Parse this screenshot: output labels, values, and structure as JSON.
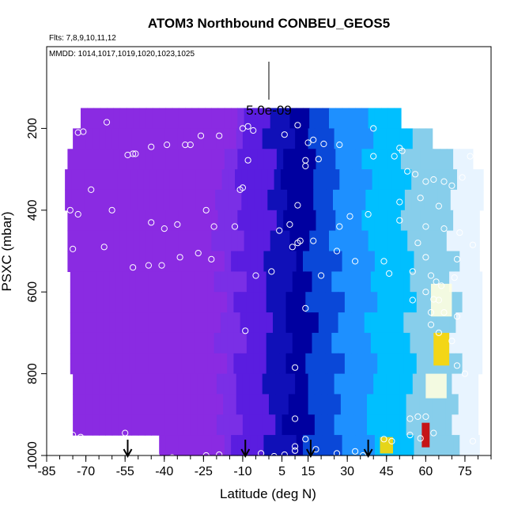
{
  "chart_data": {
    "type": "heatmap",
    "title": "ATOM3 Northbound CONBEU_GEOS5",
    "notes": [
      "Flts: 7,8,9,10,11,12",
      "MMDD: 1014,1017,1019,1020,1023,1025"
    ],
    "scale_label": "5.0e-09",
    "xlabel": "Latitude (deg N)",
    "ylabel": "PSXC (mbar)",
    "xlim": [
      -85,
      85
    ],
    "ylim": [
      1000,
      0
    ],
    "y_inverted": true,
    "x_ticks": [
      -85,
      -70,
      -55,
      -40,
      -25,
      -10,
      5,
      15,
      30,
      45,
      60,
      75
    ],
    "y_ticks": [
      200,
      400,
      600,
      800,
      1000
    ],
    "colorscale": [
      "#8a2be2",
      "#7a2fe6",
      "#5a1de0",
      "#1010b8",
      "#0000a0",
      "#0a48d8",
      "#1e90ff",
      "#00bfff",
      "#87ceeb",
      "#e8f4ff",
      "#ffffe0",
      "#ffd700",
      "#ff8c00",
      "#cc0000"
    ],
    "arrow_latitudes": [
      -54,
      -9,
      16,
      38
    ],
    "curtain": {
      "levels": [
        {
          "p": 175,
          "lat_min": -72,
          "lat_max": 50
        },
        {
          "p": 225,
          "lat_min": -75,
          "lat_max": 62
        },
        {
          "p": 275,
          "lat_min": -77,
          "lat_max": 78
        },
        {
          "p": 325,
          "lat_min": -78,
          "lat_max": 80
        },
        {
          "p": 375,
          "lat_min": -78,
          "lat_max": 80
        },
        {
          "p": 425,
          "lat_min": -77,
          "lat_max": 80
        },
        {
          "p": 475,
          "lat_min": -77,
          "lat_max": 80
        },
        {
          "p": 525,
          "lat_min": -77,
          "lat_max": 80
        },
        {
          "p": 575,
          "lat_min": -76,
          "lat_max": 80
        },
        {
          "p": 625,
          "lat_min": -76,
          "lat_max": 80
        },
        {
          "p": 675,
          "lat_min": -76,
          "lat_max": 80
        },
        {
          "p": 725,
          "lat_min": -76,
          "lat_max": 80
        },
        {
          "p": 775,
          "lat_min": -76,
          "lat_max": 80
        },
        {
          "p": 825,
          "lat_min": -75,
          "lat_max": 80
        },
        {
          "p": 875,
          "lat_min": -75,
          "lat_max": 80
        },
        {
          "p": 925,
          "lat_min": -75,
          "lat_max": 80
        },
        {
          "p": 975,
          "lat_min": -42,
          "lat_max": 80
        }
      ],
      "hotspots": [
        {
          "lat": 45,
          "p": 975,
          "lat_width": 5,
          "p_height": 40,
          "value": 0.75
        },
        {
          "lat": 60,
          "p": 950,
          "lat_width": 3,
          "p_height": 60,
          "value": 1.0
        },
        {
          "lat": 66,
          "p": 740,
          "lat_width": 6,
          "p_height": 80,
          "value": 0.8
        },
        {
          "lat": 66,
          "p": 620,
          "lat_width": 8,
          "p_height": 80,
          "value": 0.55
        },
        {
          "lat": 64,
          "p": 830,
          "lat_width": 8,
          "p_height": 60,
          "value": 0.55
        }
      ]
    },
    "observations": [
      {
        "lat": -77,
        "p": 215
      },
      {
        "lat": -73,
        "p": 210
      },
      {
        "lat": -71,
        "p": 208
      },
      {
        "lat": -62,
        "p": 185
      },
      {
        "lat": -54,
        "p": 265
      },
      {
        "lat": -52,
        "p": 262
      },
      {
        "lat": -51,
        "p": 262
      },
      {
        "lat": -45,
        "p": 245
      },
      {
        "lat": -39,
        "p": 240
      },
      {
        "lat": -32,
        "p": 240
      },
      {
        "lat": -30,
        "p": 240
      },
      {
        "lat": -26,
        "p": 218
      },
      {
        "lat": -19,
        "p": 218
      },
      {
        "lat": -10,
        "p": 200
      },
      {
        "lat": -8,
        "p": 195
      },
      {
        "lat": -6,
        "p": 205
      },
      {
        "lat": 6,
        "p": 215
      },
      {
        "lat": 11,
        "p": 192
      },
      {
        "lat": 15,
        "p": 235
      },
      {
        "lat": 17,
        "p": 228
      },
      {
        "lat": 21,
        "p": 238
      },
      {
        "lat": 27,
        "p": 240
      },
      {
        "lat": 40,
        "p": 200
      },
      {
        "lat": 50,
        "p": 248
      },
      {
        "lat": -84,
        "p": 330
      },
      {
        "lat": -76,
        "p": 400
      },
      {
        "lat": -73,
        "p": 410
      },
      {
        "lat": -68,
        "p": 350
      },
      {
        "lat": -60,
        "p": 400
      },
      {
        "lat": -45,
        "p": 430
      },
      {
        "lat": -40,
        "p": 445
      },
      {
        "lat": -35,
        "p": 435
      },
      {
        "lat": -24,
        "p": 400
      },
      {
        "lat": -21,
        "p": 440
      },
      {
        "lat": -13,
        "p": 440
      },
      {
        "lat": -11,
        "p": 350
      },
      {
        "lat": -10,
        "p": 345
      },
      {
        "lat": -8,
        "p": 278
      },
      {
        "lat": 4,
        "p": 450
      },
      {
        "lat": 8,
        "p": 435
      },
      {
        "lat": 11,
        "p": 388
      },
      {
        "lat": 14,
        "p": 278
      },
      {
        "lat": 14,
        "p": 292
      },
      {
        "lat": 19,
        "p": 275
      },
      {
        "lat": 27,
        "p": 440
      },
      {
        "lat": 31,
        "p": 415
      },
      {
        "lat": 38,
        "p": 410
      },
      {
        "lat": 40,
        "p": 268
      },
      {
        "lat": 48,
        "p": 268
      },
      {
        "lat": 51,
        "p": 255
      },
      {
        "lat": 53,
        "p": 305
      },
      {
        "lat": 56,
        "p": 312
      },
      {
        "lat": 60,
        "p": 330
      },
      {
        "lat": 63,
        "p": 325
      },
      {
        "lat": 67,
        "p": 330
      },
      {
        "lat": 70,
        "p": 340
      },
      {
        "lat": 74,
        "p": 320
      },
      {
        "lat": 77,
        "p": 268
      },
      {
        "lat": 50,
        "p": 380
      },
      {
        "lat": 58,
        "p": 370
      },
      {
        "lat": 65,
        "p": 390
      },
      {
        "lat": 50,
        "p": 425
      },
      {
        "lat": 60,
        "p": 440
      },
      {
        "lat": 67,
        "p": 445
      },
      {
        "lat": 73,
        "p": 455
      },
      {
        "lat": -75,
        "p": 495
      },
      {
        "lat": -63,
        "p": 490
      },
      {
        "lat": -52,
        "p": 540
      },
      {
        "lat": -46,
        "p": 535
      },
      {
        "lat": -41,
        "p": 535
      },
      {
        "lat": -34,
        "p": 515
      },
      {
        "lat": -27,
        "p": 505
      },
      {
        "lat": -22,
        "p": 520
      },
      {
        "lat": -5,
        "p": 560
      },
      {
        "lat": 1,
        "p": 550
      },
      {
        "lat": 9,
        "p": 490
      },
      {
        "lat": 11,
        "p": 480
      },
      {
        "lat": 12,
        "p": 475
      },
      {
        "lat": 17,
        "p": 475
      },
      {
        "lat": 20,
        "p": 560
      },
      {
        "lat": 26,
        "p": 500
      },
      {
        "lat": 33,
        "p": 525
      },
      {
        "lat": 44,
        "p": 525
      },
      {
        "lat": 46,
        "p": 555
      },
      {
        "lat": 55,
        "p": 550
      },
      {
        "lat": 57,
        "p": 480
      },
      {
        "lat": 60,
        "p": 515
      },
      {
        "lat": 62,
        "p": 560
      },
      {
        "lat": 64,
        "p": 575
      },
      {
        "lat": 66,
        "p": 585
      },
      {
        "lat": 71,
        "p": 565
      },
      {
        "lat": 72,
        "p": 520
      },
      {
        "lat": 78,
        "p": 485
      },
      {
        "lat": 14,
        "p": 640
      },
      {
        "lat": 55,
        "p": 620
      },
      {
        "lat": 60,
        "p": 600
      },
      {
        "lat": 63,
        "p": 618
      },
      {
        "lat": 65,
        "p": 620
      },
      {
        "lat": 67,
        "p": 650
      },
      {
        "lat": 62,
        "p": 650
      },
      {
        "lat": 72,
        "p": 660
      },
      {
        "lat": -9,
        "p": 695
      },
      {
        "lat": 62,
        "p": 680
      },
      {
        "lat": 65,
        "p": 700
      },
      {
        "lat": 70,
        "p": 720
      },
      {
        "lat": 10,
        "p": 785
      },
      {
        "lat": 72,
        "p": 780
      },
      {
        "lat": 75,
        "p": 800
      },
      {
        "lat": 10,
        "p": 910
      },
      {
        "lat": 54,
        "p": 910
      },
      {
        "lat": 57,
        "p": 905
      },
      {
        "lat": 60,
        "p": 905
      },
      {
        "lat": 63,
        "p": 945
      },
      {
        "lat": -75,
        "p": 950
      },
      {
        "lat": -72,
        "p": 955
      },
      {
        "lat": -55,
        "p": 945
      },
      {
        "lat": -43,
        "p": 1000
      },
      {
        "lat": -37,
        "p": 1005
      },
      {
        "lat": -24,
        "p": 1000
      },
      {
        "lat": -19,
        "p": 998
      },
      {
        "lat": -9,
        "p": 1005
      },
      {
        "lat": -3,
        "p": 995
      },
      {
        "lat": 2,
        "p": 1002
      },
      {
        "lat": 6,
        "p": 998
      },
      {
        "lat": 10,
        "p": 988
      },
      {
        "lat": 10,
        "p": 978
      },
      {
        "lat": 14,
        "p": 960
      },
      {
        "lat": 18,
        "p": 985
      },
      {
        "lat": 26,
        "p": 995
      },
      {
        "lat": 33,
        "p": 990
      },
      {
        "lat": 36,
        "p": 1000
      },
      {
        "lat": 44,
        "p": 960
      },
      {
        "lat": 47,
        "p": 965
      },
      {
        "lat": 54,
        "p": 950
      },
      {
        "lat": 58,
        "p": 958
      },
      {
        "lat": 78,
        "p": 965
      }
    ]
  }
}
